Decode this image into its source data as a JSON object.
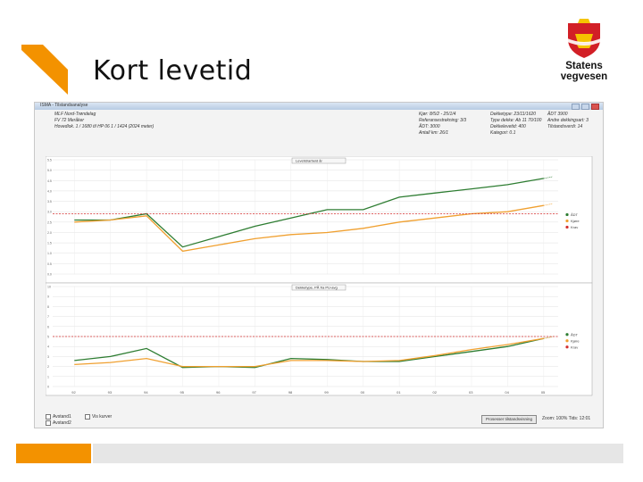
{
  "slide": {
    "title": "Kort levetid",
    "logo_text": "Statens vegvesen",
    "accent_color": "#f39200"
  },
  "window": {
    "title": "ISMA - Tilstandsanalyse",
    "info_left": [
      "MLF   Nord-Trøndelag",
      "FV 72   Meråker",
      "Hovedlok. 1 / 1680 til HP 06 1 / 1424 (2024 meter)"
    ],
    "info_mid_labels": [
      "Kjør: 8/5/2 - 25/1/4",
      "Referansestrekning: 3/3",
      "ÅDT: 3000",
      "Antall km: 26/1"
    ],
    "info_mid_values": [
      "Dekketype: 23/11/1620",
      "Type dekke: Ab 11 70/100",
      "Dekkelevetid: 400",
      "Kategori: 0.1"
    ],
    "info_right": [
      "ÅDT 3900",
      "Andre dekkingsart: 3",
      "Tilstandsverdi: 14"
    ]
  },
  "charts": {
    "top_title": "Levetid/arbeid år",
    "bottom_title": "Dekketype, PÅ fra PU-avg",
    "top_legend": [
      "ÅDT",
      "Kjøre",
      "Krav"
    ],
    "bottom_legend": [
      "ÅDT",
      "Kjøre",
      "Krav"
    ],
    "x_labels": [
      "92",
      "93",
      "94",
      "95",
      "96",
      "97",
      "98",
      "99",
      "00",
      "01",
      "02",
      "03",
      "04",
      "05"
    ],
    "top_y_labels": [
      "5.5",
      "5.0",
      "4.5",
      "4.0",
      "3.5",
      "3.0",
      "2.5",
      "2.0",
      "1.5",
      "1.0",
      "0.5",
      "0.0"
    ],
    "bottom_y_labels": [
      "10",
      "9",
      "8",
      "7",
      "6",
      "5",
      "4",
      "3",
      "2",
      "1",
      "0"
    ],
    "colors": {
      "green": "#2e7d32",
      "orange": "#f0a030",
      "red": "#d32f2f"
    }
  },
  "chart_data": [
    {
      "type": "line",
      "title": "Levetid/arbeid år",
      "x": [
        92,
        93,
        94,
        95,
        96,
        97,
        98,
        99,
        100,
        101,
        102,
        103,
        104,
        105
      ],
      "series": [
        {
          "name": "ÅDT",
          "values": [
            2.6,
            2.6,
            2.9,
            1.3,
            1.8,
            2.3,
            2.7,
            3.1,
            3.1,
            3.7,
            3.9,
            4.1,
            4.3,
            4.6
          ]
        },
        {
          "name": "Kjøre",
          "values": [
            2.5,
            2.6,
            2.8,
            1.1,
            1.4,
            1.7,
            1.9,
            2.0,
            2.2,
            2.5,
            2.7,
            2.9,
            3.0,
            3.3
          ]
        },
        {
          "name": "Krav",
          "values": [
            2.9,
            2.9,
            2.9,
            2.9,
            2.9,
            2.9,
            2.9,
            2.9,
            2.9,
            2.9,
            2.9,
            2.9,
            2.9,
            2.9
          ]
        }
      ],
      "ylim": [
        0,
        5.5
      ],
      "grid": true,
      "legend": "right"
    },
    {
      "type": "line",
      "title": "Dekketype, PÅ fra PU-avg",
      "x": [
        92,
        93,
        94,
        95,
        96,
        97,
        98,
        99,
        100,
        101,
        102,
        103,
        104,
        105
      ],
      "series": [
        {
          "name": "ÅDT",
          "values": [
            2.6,
            3.0,
            3.8,
            1.9,
            2.0,
            1.9,
            2.8,
            2.7,
            2.5,
            2.5,
            3.0,
            3.5,
            4.0,
            4.8
          ]
        },
        {
          "name": "Kjøre",
          "values": [
            2.2,
            2.4,
            2.8,
            2.0,
            2.0,
            2.0,
            2.6,
            2.6,
            2.5,
            2.6,
            3.1,
            3.7,
            4.2,
            4.8
          ]
        },
        {
          "name": "Krav",
          "values": [
            5.0,
            5.0,
            5.0,
            5.0,
            5.0,
            5.0,
            5.0,
            5.0,
            5.0,
            5.0,
            5.0,
            5.0,
            5.0,
            5.0
          ]
        }
      ],
      "ylim": [
        0,
        10
      ],
      "grid": true,
      "legend": "right"
    }
  ],
  "bottom": {
    "check1": "Avstand1",
    "check2": "Avstand2",
    "check3": "Vis kurver",
    "button": "Prosesser tilstandsvisning",
    "status": "Zoom: 100%      Tids: 12:01"
  }
}
